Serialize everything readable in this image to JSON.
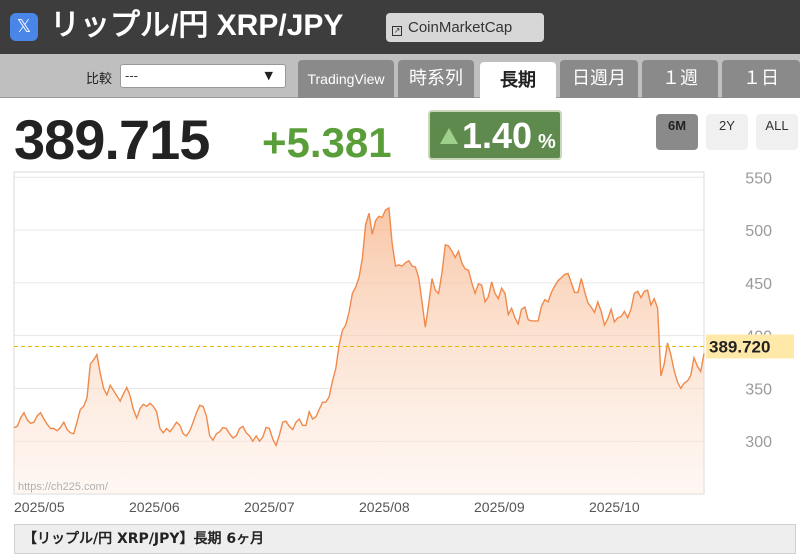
{
  "header": {
    "social_icon": "x-logo-icon",
    "social_glyph": "𝕏",
    "title": "リップル/円 XRP/JPY",
    "link_label": "CoinMarketCap",
    "link_icon": "external-link-icon",
    "link_glyph": "↗"
  },
  "compare": {
    "label": "比較",
    "value": "---",
    "arrow_glyph": "▼"
  },
  "tabs": [
    {
      "label": "TradingView",
      "active": false
    },
    {
      "label": "時系列",
      "active": false
    },
    {
      "label": "長期",
      "active": true
    },
    {
      "label": "日週月",
      "active": false
    },
    {
      "label": "１週",
      "active": false
    },
    {
      "label": "１日",
      "active": false
    }
  ],
  "quote": {
    "price": "389.715",
    "change": "+5.381",
    "change_pct": "1.40",
    "pct_unit": "%",
    "up_color": "#5a9e3a"
  },
  "ranges": [
    {
      "label": "6M",
      "active": true
    },
    {
      "label": "2Y",
      "active": false
    },
    {
      "label": "ALL",
      "active": false
    }
  ],
  "footer": {
    "caption": "【リップル/円 XRP/JPY】長期 6ヶ月"
  },
  "chart_data": {
    "type": "area",
    "current_label": "389.720",
    "current_value": 389.72,
    "watermark": "https://ch225.com/",
    "x_tick_labels": [
      "2025/05",
      "2025/06",
      "2025/07",
      "2025/08",
      "2025/09",
      "2025/10"
    ],
    "y_ticks": [
      300,
      350,
      400,
      450,
      500,
      550
    ],
    "ylim": [
      250,
      555
    ],
    "line_color": "#f08a4b",
    "fill_color": "#fbd5bf",
    "values": [
      313,
      314,
      322,
      327,
      320,
      317,
      318,
      324,
      327,
      321,
      316,
      312,
      312,
      310,
      313,
      318,
      311,
      308,
      307,
      318,
      330,
      333,
      341,
      373,
      377,
      382,
      364,
      350,
      344,
      353,
      348,
      343,
      338,
      345,
      351,
      343,
      330,
      322,
      331,
      335,
      333,
      336,
      333,
      328,
      312,
      308,
      312,
      309,
      313,
      318,
      315,
      307,
      305,
      310,
      318,
      327,
      334,
      333,
      324,
      305,
      301,
      307,
      309,
      313,
      312,
      307,
      303,
      305,
      312,
      314,
      308,
      305,
      300,
      305,
      300,
      304,
      313,
      312,
      302,
      296,
      306,
      318,
      319,
      314,
      311,
      318,
      321,
      315,
      315,
      328,
      321,
      323,
      330,
      337,
      337,
      342,
      357,
      369,
      391,
      405,
      410,
      422,
      440,
      446,
      455,
      473,
      505,
      516,
      496,
      509,
      513,
      512,
      519,
      521,
      487,
      466,
      467,
      466,
      469,
      471,
      466,
      465,
      455,
      432,
      408,
      430,
      454,
      443,
      440,
      459,
      486,
      485,
      480,
      474,
      480,
      469,
      463,
      462,
      450,
      440,
      449,
      448,
      432,
      437,
      451,
      440,
      435,
      445,
      440,
      420,
      426,
      417,
      411,
      425,
      427,
      415,
      414,
      414,
      414,
      428,
      434,
      432,
      441,
      447,
      452,
      455,
      458,
      459,
      450,
      441,
      441,
      454,
      442,
      431,
      427,
      422,
      432,
      423,
      410,
      416,
      425,
      413,
      417,
      418,
      423,
      417,
      425,
      440,
      442,
      436,
      442,
      443,
      429,
      435,
      426,
      362,
      373,
      393,
      382,
      367,
      356,
      350,
      355,
      357,
      362,
      379,
      371,
      366,
      383
    ]
  }
}
